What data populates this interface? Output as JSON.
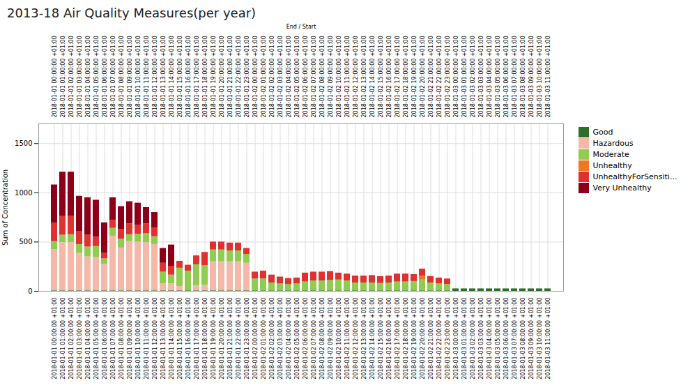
{
  "chart_data": {
    "type": "bar",
    "title": "2013-18 Air Quality Measures(per year)",
    "xlabel": "End / Start",
    "ylabel": "Sum of Concentration",
    "stacked": true,
    "grid": true,
    "legend": "right",
    "ylim": [
      0,
      1700
    ],
    "yticks": [
      0,
      500,
      1000,
      1500
    ],
    "categories": [
      "2018-01-01 00:00:00 +01:00",
      "2018-01-01 01:00:00 +01:00",
      "2018-01-01 02:00:00 +01:00",
      "2018-01-01 03:00:00 +01:00",
      "2018-01-01 04:00:00 +01:00",
      "2018-01-01 05:00:00 +01:00",
      "2018-01-01 06:00:00 +01:00",
      "2018-01-01 07:00:00 +01:00",
      "2018-01-01 08:00:00 +01:00",
      "2018-01-01 09:00:00 +01:00",
      "2018-01-01 10:00:00 +01:00",
      "2018-01-01 11:00:00 +01:00",
      "2018-01-01 12:00:00 +01:00",
      "2018-01-01 13:00:00 +01:00",
      "2018-01-01 14:00:00 +01:00",
      "2018-01-01 15:00:00 +01:00",
      "2018-01-01 16:00:00 +01:00",
      "2018-01-01 17:00:00 +01:00",
      "2018-01-01 18:00:00 +01:00",
      "2018-01-01 19:00:00 +01:00",
      "2018-01-01 20:00:00 +01:00",
      "2018-01-01 21:00:00 +01:00",
      "2018-01-01 22:00:00 +01:00",
      "2018-01-01 23:00:00 +01:00",
      "2018-01-02 00:00:00 +01:00",
      "2018-01-02 01:00:00 +01:00",
      "2018-01-02 02:00:00 +01:00",
      "2018-01-02 03:00:00 +01:00",
      "2018-01-02 04:00:00 +01:00",
      "2018-01-02 05:00:00 +01:00",
      "2018-01-02 06:00:00 +01:00",
      "2018-01-02 07:00:00 +01:00",
      "2018-01-02 08:00:00 +01:00",
      "2018-01-02 09:00:00 +01:00",
      "2018-01-02 10:00:00 +01:00",
      "2018-01-02 11:00:00 +01:00",
      "2018-01-02 12:00:00 +01:00",
      "2018-01-02 13:00:00 +01:00",
      "2018-01-02 14:00:00 +01:00",
      "2018-01-02 15:00:00 +01:00",
      "2018-01-02 16:00:00 +01:00",
      "2018-01-02 17:00:00 +01:00",
      "2018-01-02 18:00:00 +01:00",
      "2018-01-02 19:00:00 +01:00",
      "2018-01-02 20:00:00 +01:00",
      "2018-01-02 21:00:00 +01:00",
      "2018-01-02 22:00:00 +01:00",
      "2018-01-02 23:00:00 +01:00",
      "2018-01-03 00:00:00 +01:00",
      "2018-01-03 01:00:00 +01:00",
      "2018-01-03 02:00:00 +01:00",
      "2018-01-03 03:00:00 +01:00",
      "2018-01-03 04:00:00 +01:00",
      "2018-01-03 05:00:00 +01:00",
      "2018-01-03 06:00:00 +01:00",
      "2018-01-03 07:00:00 +01:00",
      "2018-01-03 08:00:00 +01:00",
      "2018-01-03 09:00:00 +01:00",
      "2018-01-03 10:00:00 +01:00",
      "2018-01-03 11:00:00 +01:00"
    ],
    "series": [
      {
        "name": "Good",
        "color": "#2d6e2d",
        "values": [
          5,
          5,
          5,
          5,
          5,
          5,
          5,
          5,
          5,
          5,
          5,
          5,
          5,
          5,
          5,
          5,
          5,
          5,
          5,
          5,
          5,
          5,
          5,
          5,
          5,
          5,
          5,
          5,
          5,
          5,
          5,
          5,
          5,
          5,
          5,
          5,
          5,
          5,
          5,
          5,
          5,
          5,
          5,
          5,
          5,
          5,
          5,
          5,
          25,
          25,
          25,
          25,
          25,
          25,
          25,
          25,
          25,
          25,
          25,
          25
        ]
      },
      {
        "name": "Hazardous",
        "color": "#f5b8a8",
        "values": [
          420,
          490,
          490,
          380,
          345,
          340,
          270,
          555,
          435,
          500,
          495,
          490,
          470,
          70,
          70,
          45,
          0,
          50,
          55,
          295,
          295,
          295,
          295,
          280,
          0,
          0,
          0,
          0,
          0,
          0,
          0,
          0,
          0,
          0,
          0,
          0,
          0,
          0,
          0,
          0,
          0,
          0,
          0,
          0,
          0,
          0,
          0,
          0,
          0,
          0,
          0,
          0,
          0,
          0,
          0,
          0,
          0,
          0,
          0,
          0
        ]
      },
      {
        "name": "Moderate",
        "color": "#8fcc50",
        "values": [
          80,
          75,
          80,
          90,
          100,
          110,
          55,
          80,
          90,
          70,
          80,
          90,
          80,
          120,
          90,
          185,
          200,
          215,
          200,
          120,
          120,
          110,
          110,
          90,
          120,
          120,
          80,
          70,
          65,
          70,
          90,
          100,
          100,
          105,
          110,
          100,
          80,
          80,
          80,
          75,
          80,
          90,
          90,
          95,
          110,
          80,
          70,
          65,
          0,
          0,
          0,
          0,
          0,
          0,
          0,
          0,
          0,
          0,
          0,
          0
        ]
      },
      {
        "name": "Unhealthy",
        "color": "#f07820",
        "values": [
          0,
          0,
          0,
          0,
          0,
          0,
          0,
          0,
          0,
          0,
          0,
          0,
          0,
          0,
          0,
          0,
          0,
          0,
          0,
          0,
          0,
          0,
          0,
          0,
          0,
          0,
          0,
          0,
          0,
          0,
          0,
          0,
          0,
          0,
          0,
          0,
          0,
          0,
          0,
          0,
          0,
          0,
          0,
          0,
          40,
          0,
          0,
          0,
          0,
          0,
          0,
          0,
          0,
          0,
          0,
          0,
          0,
          0,
          0,
          0
        ]
      },
      {
        "name": "UnhealthyForSensiti...",
        "color": "#e03030",
        "values": [
          185,
          190,
          190,
          130,
          120,
          95,
          55,
          80,
          100,
          110,
          90,
          100,
          90,
          90,
          90,
          70,
          60,
          90,
          135,
          80,
          80,
          80,
          80,
          60,
          70,
          80,
          80,
          70,
          60,
          60,
          90,
          90,
          90,
          90,
          70,
          70,
          70,
          70,
          75,
          70,
          70,
          80,
          80,
          70,
          70,
          65,
          60,
          55,
          0,
          0,
          0,
          0,
          0,
          0,
          0,
          0,
          0,
          0,
          0,
          0
        ]
      },
      {
        "name": "Very Unhealthy",
        "color": "#8b0018",
        "values": [
          390,
          450,
          445,
          360,
          380,
          375,
          310,
          230,
          230,
          225,
          225,
          165,
          155,
          150,
          215,
          0,
          0,
          0,
          0,
          0,
          0,
          0,
          0,
          0,
          0,
          0,
          0,
          0,
          0,
          0,
          0,
          0,
          0,
          0,
          0,
          0,
          0,
          0,
          0,
          0,
          0,
          0,
          0,
          0,
          0,
          0,
          0,
          0,
          0,
          0,
          0,
          0,
          0,
          0,
          0,
          0,
          0,
          0,
          0,
          0
        ]
      }
    ]
  }
}
